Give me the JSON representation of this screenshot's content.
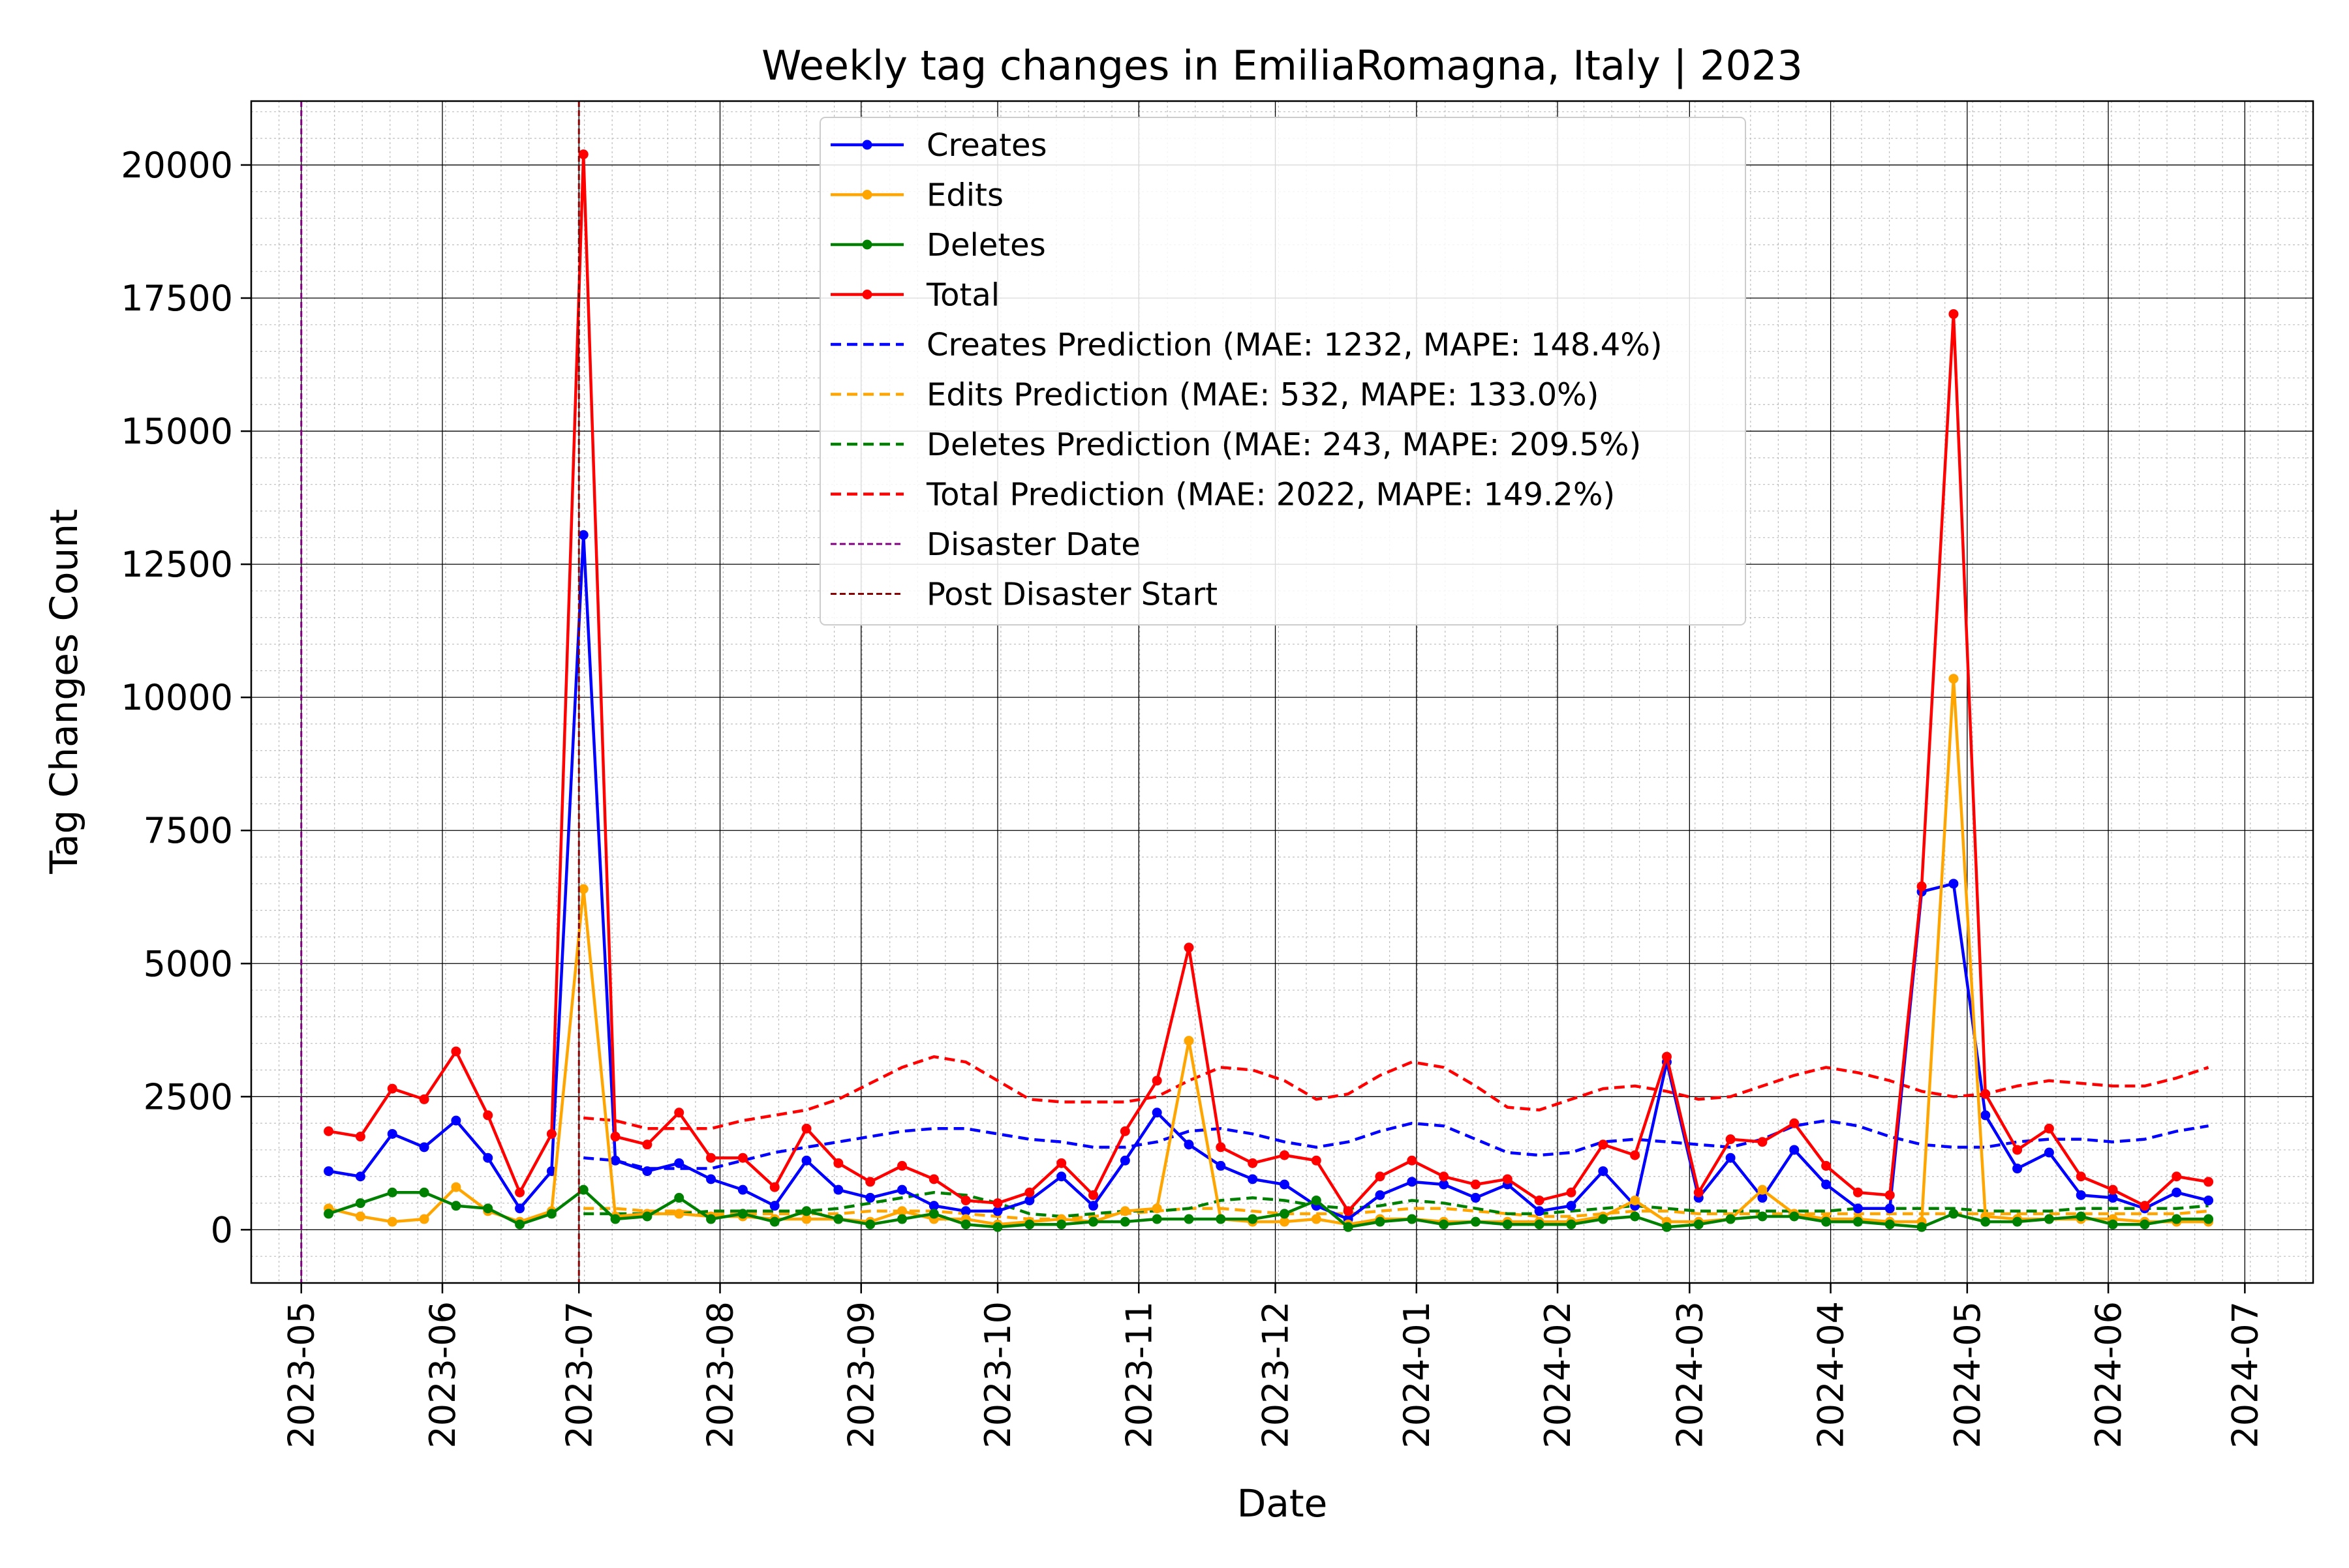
{
  "chart_data": {
    "type": "line",
    "title": "Weekly tag changes in EmiliaRomagna, Italy | 2023",
    "xlabel": "Date",
    "ylabel": "Tag Changes Count",
    "xlim": [
      "2023-04-20",
      "2024-07-16"
    ],
    "ylim": [
      -1000,
      21200
    ],
    "x_ticks": [
      "2023-05-01",
      "2023-06-01",
      "2023-07-01",
      "2023-08-01",
      "2023-09-01",
      "2023-10-01",
      "2023-11-01",
      "2023-12-01",
      "2024-01-01",
      "2024-02-01",
      "2024-03-01",
      "2024-04-01",
      "2024-05-01",
      "2024-06-01",
      "2024-07-01"
    ],
    "x_tick_labels": [
      "2023-05",
      "2023-06",
      "2023-07",
      "2023-08",
      "2023-09",
      "2023-10",
      "2023-11",
      "2023-12",
      "2024-01",
      "2024-02",
      "2024-03",
      "2024-04",
      "2024-05",
      "2024-06",
      "2024-07"
    ],
    "y_ticks": [
      0,
      2500,
      5000,
      7500,
      10000,
      12500,
      15000,
      17500,
      20000
    ],
    "y_tick_labels": [
      "0",
      "2500",
      "5000",
      "7500",
      "10000",
      "12500",
      "15000",
      "17500",
      "20000"
    ],
    "grid": true,
    "legend_position": "top-center",
    "x": [
      "2023-05-07",
      "2023-05-14",
      "2023-05-21",
      "2023-05-28",
      "2023-06-04",
      "2023-06-11",
      "2023-06-18",
      "2023-06-25",
      "2023-07-02",
      "2023-07-09",
      "2023-07-16",
      "2023-07-23",
      "2023-07-30",
      "2023-08-06",
      "2023-08-13",
      "2023-08-20",
      "2023-08-27",
      "2023-09-03",
      "2023-09-10",
      "2023-09-17",
      "2023-09-24",
      "2023-10-01",
      "2023-10-08",
      "2023-10-15",
      "2023-10-22",
      "2023-10-29",
      "2023-11-05",
      "2023-11-12",
      "2023-11-19",
      "2023-11-26",
      "2023-12-03",
      "2023-12-10",
      "2023-12-17",
      "2023-12-24",
      "2023-12-31",
      "2024-01-07",
      "2024-01-14",
      "2024-01-21",
      "2024-01-28",
      "2024-02-04",
      "2024-02-11",
      "2024-02-18",
      "2024-02-25",
      "2024-03-03",
      "2024-03-10",
      "2024-03-17",
      "2024-03-24",
      "2024-03-31",
      "2024-04-07",
      "2024-04-14",
      "2024-04-21",
      "2024-04-28",
      "2024-05-05",
      "2024-05-12",
      "2024-05-19",
      "2024-05-26",
      "2024-06-02",
      "2024-06-09",
      "2024-06-16",
      "2024-06-23"
    ],
    "series": [
      {
        "name": "Creates",
        "color": "#0000ff",
        "style": "solid-marker",
        "values": [
          1100,
          1000,
          1800,
          1550,
          2050,
          1350,
          400,
          1100,
          13050,
          1300,
          1100,
          1250,
          950,
          750,
          450,
          1300,
          750,
          600,
          750,
          450,
          350,
          350,
          550,
          1000,
          450,
          1300,
          2200,
          1600,
          1200,
          950,
          850,
          450,
          200,
          650,
          900,
          850,
          600,
          850,
          350,
          450,
          1100,
          450,
          3150,
          600,
          1350,
          600,
          1500,
          850,
          400,
          400,
          6350,
          6500,
          2150,
          1150,
          1450,
          650,
          600,
          400,
          700,
          550
        ]
      },
      {
        "name": "Edits",
        "color": "#ffa500",
        "style": "solid-marker",
        "values": [
          400,
          250,
          150,
          200,
          800,
          350,
          150,
          350,
          6400,
          250,
          300,
          300,
          250,
          250,
          200,
          200,
          200,
          150,
          350,
          200,
          200,
          100,
          150,
          200,
          150,
          350,
          400,
          3550,
          200,
          150,
          150,
          200,
          100,
          200,
          200,
          150,
          150,
          150,
          150,
          150,
          250,
          550,
          150,
          150,
          200,
          750,
          300,
          200,
          200,
          150,
          150,
          10350,
          250,
          200,
          200,
          200,
          200,
          150,
          150,
          150
        ]
      },
      {
        "name": "Deletes",
        "color": "#008000",
        "style": "solid-marker",
        "values": [
          300,
          500,
          700,
          700,
          450,
          400,
          100,
          300,
          750,
          200,
          250,
          600,
          200,
          300,
          150,
          350,
          200,
          100,
          200,
          300,
          100,
          50,
          100,
          100,
          150,
          150,
          200,
          200,
          200,
          200,
          300,
          550,
          50,
          150,
          200,
          100,
          150,
          100,
          100,
          100,
          200,
          250,
          50,
          100,
          200,
          250,
          250,
          150,
          150,
          100,
          50,
          300,
          150,
          150,
          200,
          250,
          100,
          100,
          200,
          200
        ]
      },
      {
        "name": "Total",
        "color": "#ff0000",
        "style": "solid-marker",
        "values": [
          1850,
          1750,
          2650,
          2450,
          3350,
          2150,
          700,
          1800,
          20200,
          1750,
          1600,
          2200,
          1350,
          1350,
          800,
          1900,
          1250,
          900,
          1200,
          950,
          550,
          500,
          700,
          1250,
          650,
          1850,
          2800,
          5300,
          1550,
          1250,
          1400,
          1300,
          350,
          1000,
          1300,
          1000,
          850,
          950,
          550,
          700,
          1600,
          1400,
          3250,
          700,
          1700,
          1650,
          2000,
          1200,
          700,
          650,
          6450,
          17200,
          2550,
          1500,
          1900,
          1000,
          750,
          450,
          1000,
          900
        ]
      },
      {
        "name": "Creates Prediction (MAE: 1232, MAPE: 148.4%)",
        "color": "#0000ff",
        "style": "dashed",
        "values": [
          null,
          null,
          null,
          null,
          null,
          null,
          null,
          null,
          1350,
          1300,
          1150,
          1150,
          1150,
          1300,
          1450,
          1550,
          1650,
          1750,
          1850,
          1900,
          1900,
          1800,
          1700,
          1650,
          1550,
          1550,
          1650,
          1850,
          1900,
          1800,
          1650,
          1550,
          1650,
          1850,
          2000,
          1950,
          1700,
          1450,
          1400,
          1450,
          1650,
          1700,
          1650,
          1600,
          1550,
          1700,
          1950,
          2050,
          1950,
          1750,
          1600,
          1550,
          1550,
          1650,
          1700,
          1700,
          1650,
          1700,
          1850,
          1950
        ]
      },
      {
        "name": "Edits Prediction (MAE: 532, MAPE: 133.0%)",
        "color": "#ffa500",
        "style": "dashed",
        "values": [
          null,
          null,
          null,
          null,
          null,
          null,
          null,
          null,
          400,
          400,
          350,
          350,
          300,
          300,
          300,
          300,
          300,
          350,
          350,
          350,
          300,
          250,
          200,
          200,
          250,
          300,
          350,
          400,
          400,
          350,
          300,
          300,
          300,
          350,
          400,
          400,
          350,
          300,
          250,
          250,
          300,
          350,
          350,
          300,
          300,
          300,
          300,
          300,
          300,
          300,
          300,
          300,
          300,
          300,
          300,
          300,
          300,
          300,
          300,
          350
        ]
      },
      {
        "name": "Deletes Prediction (MAE: 243, MAPE: 209.5%)",
        "color": "#008000",
        "style": "dashed",
        "values": [
          null,
          null,
          null,
          null,
          null,
          null,
          null,
          null,
          300,
          300,
          300,
          300,
          350,
          350,
          350,
          350,
          400,
          500,
          600,
          700,
          650,
          500,
          300,
          250,
          300,
          350,
          350,
          400,
          550,
          600,
          550,
          450,
          400,
          450,
          550,
          500,
          400,
          300,
          300,
          350,
          400,
          450,
          400,
          350,
          350,
          350,
          350,
          350,
          400,
          400,
          400,
          400,
          350,
          350,
          350,
          400,
          400,
          400,
          400,
          450
        ]
      },
      {
        "name": "Total Prediction (MAE: 2022, MAPE: 149.2%)",
        "color": "#ff0000",
        "style": "dashed",
        "values": [
          null,
          null,
          null,
          null,
          null,
          null,
          null,
          null,
          2100,
          2050,
          1900,
          1900,
          1900,
          2050,
          2150,
          2250,
          2450,
          2750,
          3050,
          3250,
          3150,
          2800,
          2450,
          2400,
          2400,
          2400,
          2500,
          2800,
          3050,
          3000,
          2800,
          2450,
          2550,
          2900,
          3150,
          3050,
          2700,
          2300,
          2250,
          2450,
          2650,
          2700,
          2600,
          2450,
          2500,
          2700,
          2900,
          3050,
          2950,
          2800,
          2600,
          2500,
          2550,
          2700,
          2800,
          2750,
          2700,
          2700,
          2850,
          3050
        ]
      }
    ],
    "vertical_lines": [
      {
        "name": "Disaster Date",
        "x": "2023-05-01",
        "color": "#800080",
        "style": "dashed"
      },
      {
        "name": "Post Disaster Start",
        "x": "2023-07-01",
        "color": "#8b0000",
        "style": "dashed"
      }
    ],
    "legend_entries": [
      "Creates",
      "Edits",
      "Deletes",
      "Total",
      "Creates Prediction (MAE: 1232, MAPE: 148.4%)",
      "Edits Prediction (MAE: 532, MAPE: 133.0%)",
      "Deletes Prediction (MAE: 243, MAPE: 209.5%)",
      "Total Prediction (MAE: 2022, MAPE: 149.2%)",
      "Disaster Date",
      "Post Disaster Start"
    ]
  }
}
